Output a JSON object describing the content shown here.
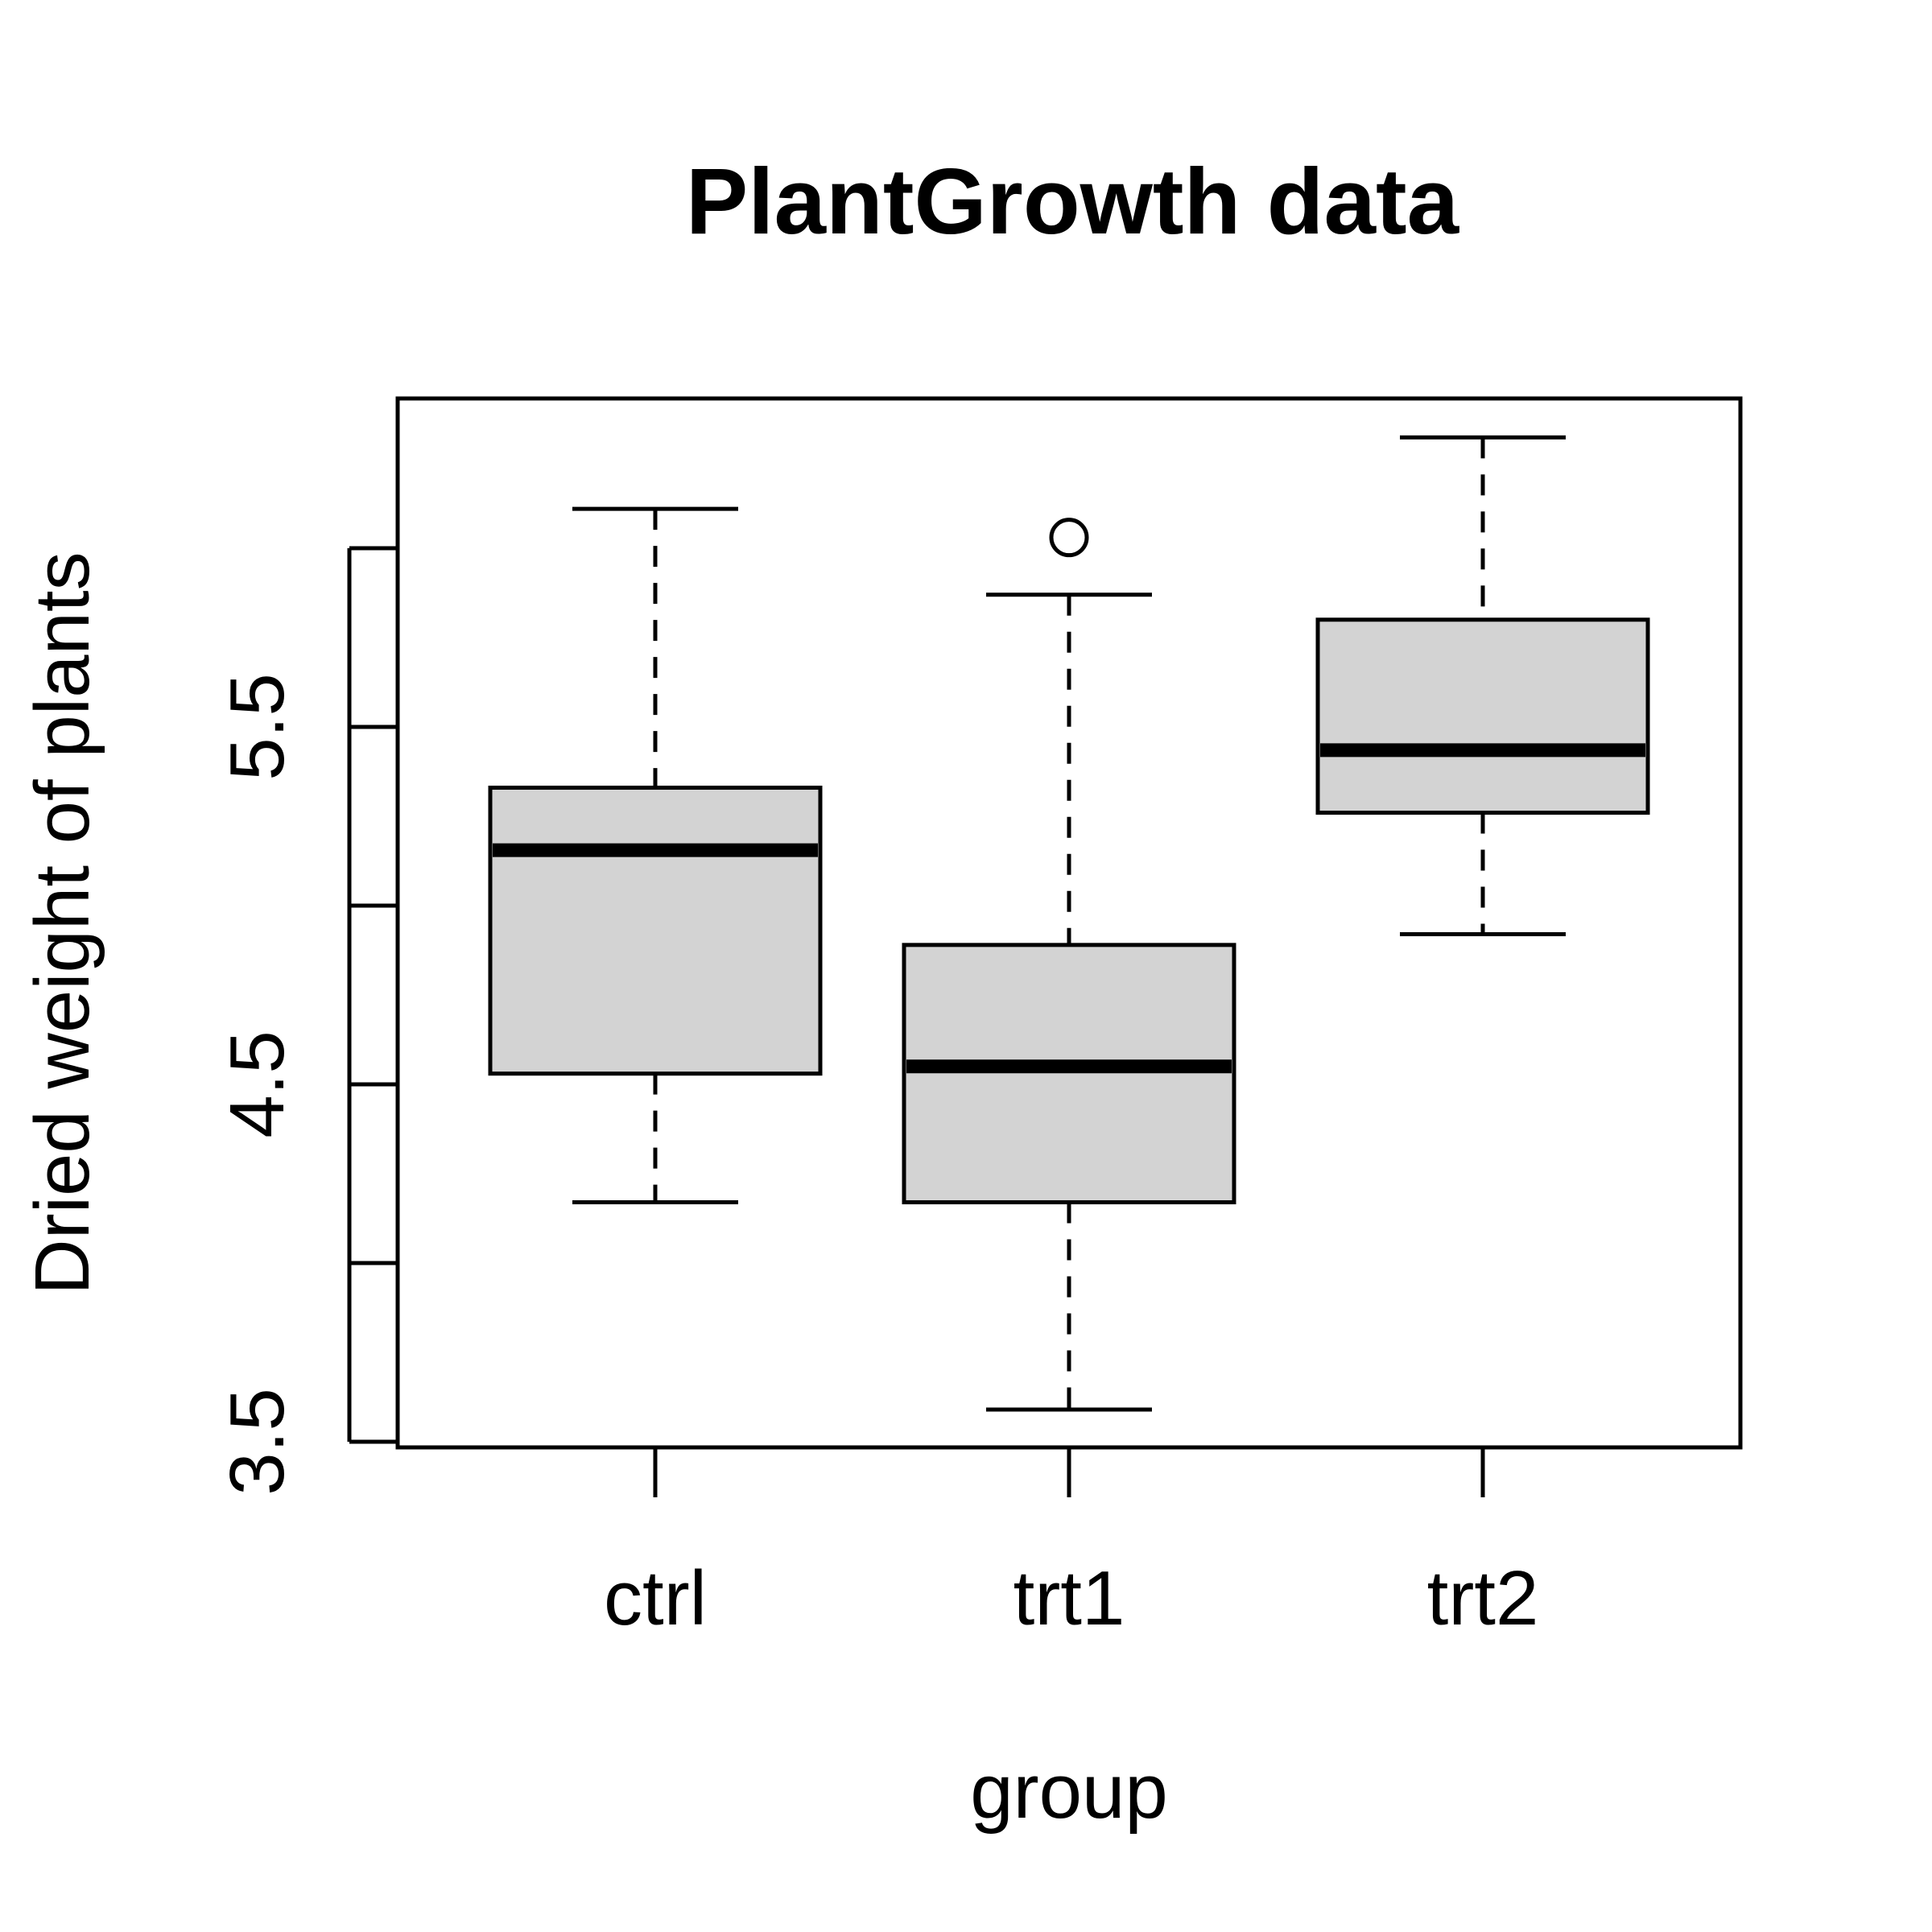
{
  "chart_data": {
    "type": "box",
    "title": "PlantGrowth data",
    "xlabel": "group",
    "ylabel": "Dried weight of plants",
    "categories": [
      "ctrl",
      "trt1",
      "trt2"
    ],
    "ylim": [
      3.5,
      6.43
    ],
    "y_ticks": [
      3.5,
      4.0,
      4.5,
      5.0,
      5.5,
      6.0
    ],
    "y_tick_labels": [
      "3.5",
      "",
      "4.5",
      "",
      "5.5",
      ""
    ],
    "box_fill": "#d3d3d3",
    "boxes": [
      {
        "category": "ctrl",
        "min": 4.17,
        "q1": 4.53,
        "median": 5.155,
        "q3": 5.33,
        "max": 6.11,
        "outliers": []
      },
      {
        "category": "trt1",
        "min": 3.59,
        "q1": 4.17,
        "median": 4.55,
        "q3": 4.89,
        "max": 5.87,
        "outliers": [
          6.03
        ]
      },
      {
        "category": "trt2",
        "min": 4.92,
        "q1": 5.26,
        "median": 5.435,
        "q3": 5.8,
        "max": 6.31,
        "outliers": []
      }
    ]
  }
}
